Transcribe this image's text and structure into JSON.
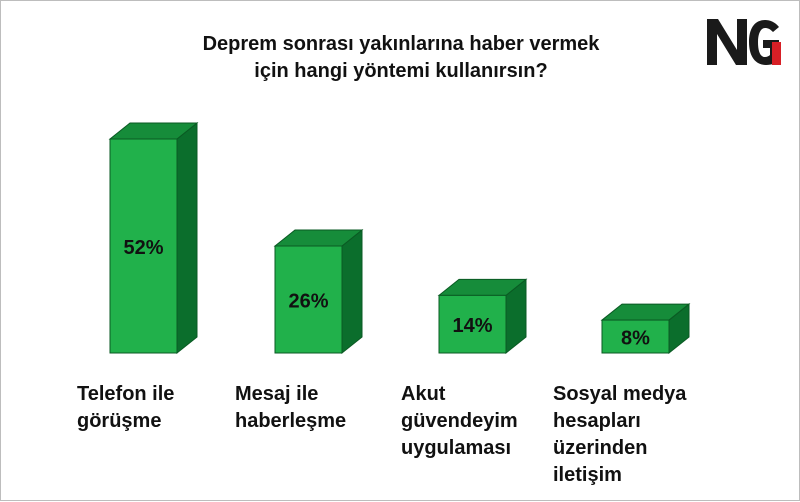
{
  "chart_data": {
    "type": "bar",
    "title_lines": [
      "Deprem sonrası yakınlarına haber vermek",
      "için hangi yöntemi kullanırsın?"
    ],
    "categories": [
      [
        "Telefon ile",
        "görüşme"
      ],
      [
        "Mesaj ile",
        "haberleşme"
      ],
      [
        "Akut",
        "güvendeyim",
        "uygulaması"
      ],
      [
        "Sosyal medya",
        "hesapları",
        "üzerinden",
        "iletişim"
      ]
    ],
    "values": [
      52,
      26,
      14,
      8
    ],
    "value_labels": [
      "52%",
      "26%",
      "14%",
      "8%"
    ],
    "unit": "%",
    "ylim": [
      0,
      52
    ],
    "grid": false,
    "legend": "none",
    "bar_style": "3d",
    "colors": {
      "front": "#21b14b",
      "top": "#168c3a",
      "side": "#0b6e2c",
      "edge": "#0a5a23",
      "text": "#111111"
    }
  },
  "logo": {
    "text": "NG",
    "colors": {
      "letters": "#1a1a1a",
      "accent": "#d71f26"
    }
  }
}
